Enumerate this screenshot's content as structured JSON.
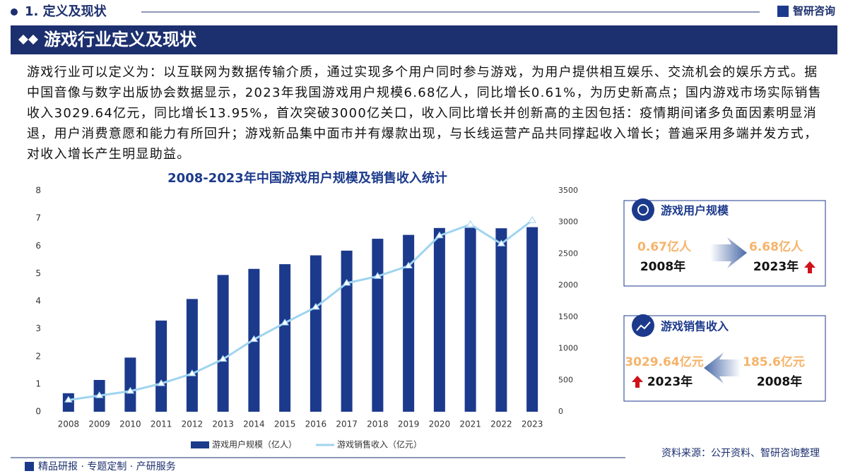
{
  "header": {
    "section": "1. 定义及现状",
    "logo": "智研咨询"
  },
  "banner": {
    "title": "游戏行业定义及现状"
  },
  "paragraph": "游戏行业可以定义为：以互联网为数据传输介质，通过实现多个用户同时参与游戏，为用户提供相互娱乐、交流机会的娱乐方式。据中国音像与数字出版协会数据显示，2023年我国游戏用户规模6.68亿人，同比增长0.61%，为历史新高点；国内游戏市场实际销售收入3029.64亿元，同比增长13.95%，首次突破3000亿关口，收入同比增长并创新高的主因包括：疫情期间诸多负面因素明显消退，用户消费意愿和能力有所回升；游戏新品集中面市并有爆款出现，与长线运营产品共同撑起收入增长；普遍采用多端并发方式，对收入增长产生明显助益。",
  "chart_data": {
    "type": "bar",
    "title": "2008-2023年中国游戏用户规模及销售收入统计",
    "categories": [
      "2008",
      "2009",
      "2010",
      "2011",
      "2012",
      "2013",
      "2014",
      "2015",
      "2016",
      "2017",
      "2018",
      "2019",
      "2020",
      "2021",
      "2022",
      "2023"
    ],
    "series": [
      {
        "name": "游戏用户规模（亿人）",
        "type": "bar",
        "color": "#1c3a8c",
        "values": [
          0.67,
          1.15,
          1.96,
          3.3,
          4.08,
          4.95,
          5.17,
          5.34,
          5.66,
          5.83,
          6.26,
          6.4,
          6.65,
          6.66,
          6.64,
          6.68
        ]
      },
      {
        "name": "游戏销售收入（亿元）",
        "type": "line",
        "axis": "y2",
        "color": "#9fd4f0",
        "values": [
          185.6,
          256.2,
          326,
          446,
          602.8,
          831.7,
          1144.8,
          1407,
          1655.7,
          2036.1,
          2144.4,
          2308.8,
          2786.87,
          2965.13,
          2658.84,
          3029.64
        ]
      }
    ],
    "ylim": [
      0,
      8
    ],
    "yticks": [
      0,
      1,
      2,
      3,
      4,
      5,
      6,
      7,
      8
    ],
    "y2lim": [
      0,
      3500
    ],
    "y2ticks": [
      0,
      500,
      1000,
      1500,
      2000,
      2500,
      3000,
      3500
    ]
  },
  "panels": [
    {
      "title": "游戏用户规模",
      "left_value": "0.67亿人",
      "left_year": "2008年",
      "right_value": "6.68亿人",
      "right_year": "2023年"
    },
    {
      "title": "游戏销售收入",
      "left_value": "3029.64亿元",
      "left_year": "2023年",
      "right_value": "185.6亿元",
      "right_year": "2008年"
    }
  ],
  "footer": {
    "tagline": "精品研报 · 专题定制 · 产研服务",
    "source": "资料来源：公开资料、智研咨询整理"
  }
}
